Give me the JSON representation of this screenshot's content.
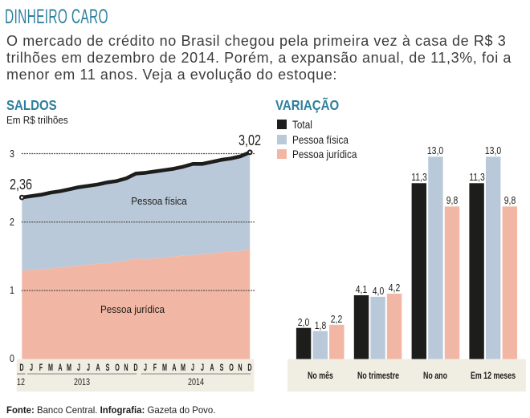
{
  "header": {
    "title": "DINHEIRO CARO",
    "intro_lines": [
      "O mercado de crédito no Brasil chegou pela primeira vez à casa de R$ 3",
      "trilhões em dezembro de 2014. Porém, a expansão anual, de 11,3%, foi a",
      "menor em 11 anos. Veja a evolução do estoque:"
    ]
  },
  "footer": {
    "source_label": "Fonte:",
    "source_text": " Banco Central. ",
    "credit_label": "Infografia:",
    "credit_text": " Gazeta do Povo."
  },
  "colors": {
    "teal": "#2e7f9e",
    "black": "#1d1d1b",
    "blue": "#bac9d9",
    "salmon": "#f1b7a4",
    "band": "#f0ede3",
    "grid": "#44423e",
    "band_rule": "#8d8a82"
  },
  "chart_data": [
    {
      "type": "area",
      "title": "SALDOS",
      "subtitle": "Em R$ trilhões",
      "ylim": [
        0,
        3
      ],
      "yticks": [
        "0",
        "1",
        "2",
        "3"
      ],
      "grid": "dotted horizontal at 1, 2, 3",
      "x": [
        "D",
        "J",
        "F",
        "M",
        "A",
        "M",
        "J",
        "J",
        "A",
        "S",
        "O",
        "N",
        "D",
        "J",
        "F",
        "M",
        "A",
        "M",
        "J",
        "J",
        "A",
        "S",
        "O",
        "N",
        "D"
      ],
      "year_groups": [
        {
          "label": "12",
          "from": 0,
          "to": 0
        },
        {
          "label": "2013",
          "from": 1,
          "to": 12
        },
        {
          "label": "2014",
          "from": 13,
          "to": 24
        }
      ],
      "series": [
        {
          "name": "Total",
          "style": "line",
          "values": [
            2.36,
            2.38,
            2.4,
            2.43,
            2.45,
            2.48,
            2.51,
            2.53,
            2.55,
            2.58,
            2.6,
            2.64,
            2.71,
            2.72,
            2.74,
            2.76,
            2.78,
            2.81,
            2.85,
            2.85,
            2.88,
            2.91,
            2.93,
            2.96,
            3.02
          ]
        },
        {
          "name": "Pessoa física",
          "style": "area",
          "stack": "between Pessoa jurídica and Total"
        },
        {
          "name": "Pessoa jurídica",
          "style": "area",
          "values": [
            1.29,
            1.3,
            1.31,
            1.32,
            1.34,
            1.35,
            1.36,
            1.38,
            1.39,
            1.4,
            1.42,
            1.44,
            1.47,
            1.46,
            1.47,
            1.48,
            1.5,
            1.51,
            1.52,
            1.53,
            1.54,
            1.56,
            1.57,
            1.58,
            1.61
          ]
        }
      ],
      "annotations": {
        "start": "2,36",
        "end": "3,02",
        "area_top_label": "Pessoa física",
        "area_bottom_label": "Pessoa jurídica"
      }
    },
    {
      "type": "bar",
      "title": "VARIAÇÃO",
      "categories": [
        "No mês",
        "No trimestre",
        "No ano",
        "Em 12 meses"
      ],
      "legend": [
        "Total",
        "Pessoa física",
        "Pessoa jurídica"
      ],
      "series": [
        {
          "name": "Total",
          "values": [
            2.0,
            4.1,
            11.3,
            11.3
          ],
          "labels": [
            "2,0",
            "4,1",
            "11,3",
            "11,3"
          ]
        },
        {
          "name": "Pessoa física",
          "values": [
            1.8,
            4.0,
            13.0,
            13.0
          ],
          "labels": [
            "1,8",
            "4,0",
            "13,0",
            "13,0"
          ]
        },
        {
          "name": "Pessoa jurídica",
          "values": [
            2.2,
            4.2,
            9.8,
            9.8
          ],
          "labels": [
            "2,2",
            "4,2",
            "9,8",
            "9,8"
          ]
        }
      ]
    }
  ]
}
